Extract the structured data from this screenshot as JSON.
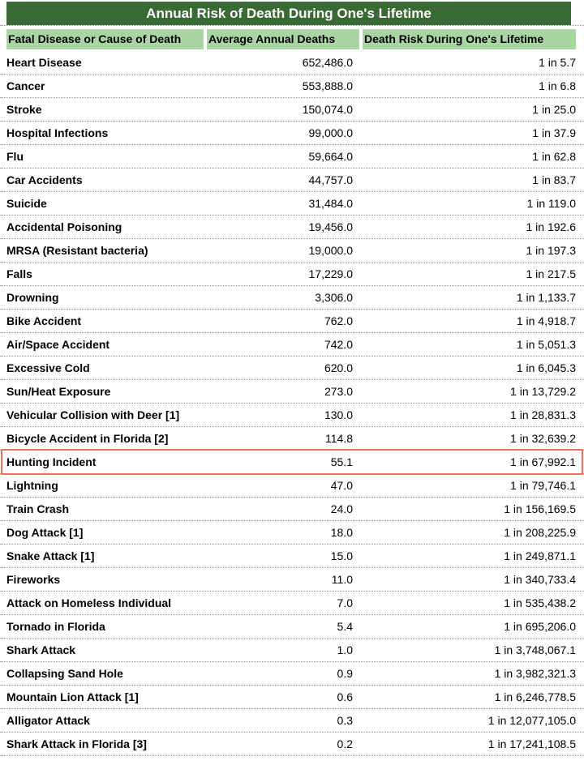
{
  "title": "Annual Risk of Death During One's Lifetime",
  "table": {
    "columns": [
      "Fatal Disease or Cause of Death",
      "Average Annual Deaths",
      "Death Risk During One's Lifetime"
    ],
    "rows": [
      {
        "cause": "Heart Disease",
        "deaths": "652,486.0",
        "risk": "1 in 5.7",
        "highlighted": false
      },
      {
        "cause": "Cancer",
        "deaths": "553,888.0",
        "risk": "1 in 6.8",
        "highlighted": false
      },
      {
        "cause": "Stroke",
        "deaths": "150,074.0",
        "risk": "1 in 25.0",
        "highlighted": false
      },
      {
        "cause": "Hospital Infections",
        "deaths": "99,000.0",
        "risk": "1 in 37.9",
        "highlighted": false
      },
      {
        "cause": "Flu",
        "deaths": "59,664.0",
        "risk": "1 in 62.8",
        "highlighted": false
      },
      {
        "cause": "Car Accidents",
        "deaths": "44,757.0",
        "risk": "1 in 83.7",
        "highlighted": false
      },
      {
        "cause": "Suicide",
        "deaths": "31,484.0",
        "risk": "1 in 119.0",
        "highlighted": false
      },
      {
        "cause": "Accidental Poisoning",
        "deaths": "19,456.0",
        "risk": "1 in 192.6",
        "highlighted": false
      },
      {
        "cause": "MRSA (Resistant bacteria)",
        "deaths": "19,000.0",
        "risk": "1 in 197.3",
        "highlighted": false
      },
      {
        "cause": "Falls",
        "deaths": "17,229.0",
        "risk": "1 in 217.5",
        "highlighted": false
      },
      {
        "cause": "Drowning",
        "deaths": "3,306.0",
        "risk": "1 in 1,133.7",
        "highlighted": false
      },
      {
        "cause": "Bike Accident",
        "deaths": "762.0",
        "risk": "1 in 4,918.7",
        "highlighted": false
      },
      {
        "cause": "Air/Space Accident",
        "deaths": "742.0",
        "risk": "1 in 5,051.3",
        "highlighted": false
      },
      {
        "cause": "Excessive Cold",
        "deaths": "620.0",
        "risk": "1 in 6,045.3",
        "highlighted": false
      },
      {
        "cause": "Sun/Heat Exposure",
        "deaths": "273.0",
        "risk": "1 in 13,729.2",
        "highlighted": false
      },
      {
        "cause": "Vehicular Collision with Deer [1]",
        "deaths": "130.0",
        "risk": "1 in 28,831.3",
        "highlighted": false
      },
      {
        "cause": "Bicycle Accident in Florida [2]",
        "deaths": "114.8",
        "risk": "1 in 32,639.2",
        "highlighted": false
      },
      {
        "cause": "Hunting Incident",
        "deaths": "55.1",
        "risk": "1 in 67,992.1",
        "highlighted": true
      },
      {
        "cause": "Lightning",
        "deaths": "47.0",
        "risk": "1 in 79,746.1",
        "highlighted": false
      },
      {
        "cause": "Train Crash",
        "deaths": "24.0",
        "risk": "1 in 156,169.5",
        "highlighted": false
      },
      {
        "cause": "Dog Attack [1]",
        "deaths": "18.0",
        "risk": "1 in 208,225.9",
        "highlighted": false
      },
      {
        "cause": "Snake Attack [1]",
        "deaths": "15.0",
        "risk": "1 in 249,871.1",
        "highlighted": false
      },
      {
        "cause": "Fireworks",
        "deaths": "11.0",
        "risk": "1 in 340,733.4",
        "highlighted": false
      },
      {
        "cause": "Attack on Homeless Individual",
        "deaths": "7.0",
        "risk": "1 in 535,438.2",
        "highlighted": false
      },
      {
        "cause": "Tornado in Florida",
        "deaths": "5.4",
        "risk": "1 in 695,206.0",
        "highlighted": false
      },
      {
        "cause": "Shark Attack",
        "deaths": "1.0",
        "risk": "1 in 3,748,067.1",
        "highlighted": false
      },
      {
        "cause": "Collapsing Sand Hole",
        "deaths": "0.9",
        "risk": "1 in 3,982,321.3",
        "highlighted": false
      },
      {
        "cause": "Mountain Lion Attack [1]",
        "deaths": "0.6",
        "risk": "1 in 6,246,778.5",
        "highlighted": false
      },
      {
        "cause": "Alligator Attack",
        "deaths": "0.3",
        "risk": "1 in 12,077,105.0",
        "highlighted": false
      },
      {
        "cause": "Shark Attack in Florida [3]",
        "deaths": "0.2",
        "risk": "1 in 17,241,108.5",
        "highlighted": false
      }
    ]
  },
  "colors": {
    "title_bg": "#396a34",
    "title_text": "#ffffff",
    "header_bg": "#a8d5a2",
    "header_text": "#000000",
    "separator": "#999999",
    "highlight_border": "#e8735c",
    "background": "#ffffff"
  },
  "chart_data": {
    "type": "table",
    "title": "Annual Risk of Death During One's Lifetime",
    "columns": [
      "Fatal Disease or Cause of Death",
      "Average Annual Deaths",
      "Death Risk During One's Lifetime"
    ],
    "categories": [
      "Heart Disease",
      "Cancer",
      "Stroke",
      "Hospital Infections",
      "Flu",
      "Car Accidents",
      "Suicide",
      "Accidental Poisoning",
      "MRSA (Resistant bacteria)",
      "Falls",
      "Drowning",
      "Bike Accident",
      "Air/Space Accident",
      "Excessive Cold",
      "Sun/Heat Exposure",
      "Vehicular Collision with Deer [1]",
      "Bicycle Accident in Florida [2]",
      "Hunting Incident",
      "Lightning",
      "Train Crash",
      "Dog Attack [1]",
      "Snake Attack [1]",
      "Fireworks",
      "Attack on Homeless Individual",
      "Tornado in Florida",
      "Shark Attack",
      "Collapsing Sand Hole",
      "Mountain Lion Attack [1]",
      "Alligator Attack",
      "Shark Attack in Florida [3]"
    ],
    "series": [
      {
        "name": "Average Annual Deaths",
        "values": [
          652486.0,
          553888.0,
          150074.0,
          99000.0,
          59664.0,
          44757.0,
          31484.0,
          19456.0,
          19000.0,
          17229.0,
          3306.0,
          762.0,
          742.0,
          620.0,
          273.0,
          130.0,
          114.8,
          55.1,
          47.0,
          24.0,
          18.0,
          15.0,
          11.0,
          7.0,
          5.4,
          1.0,
          0.9,
          0.6,
          0.3,
          0.2
        ]
      },
      {
        "name": "Death Risk During One's Lifetime (1 in N)",
        "values": [
          5.7,
          6.8,
          25.0,
          37.9,
          62.8,
          83.7,
          119.0,
          192.6,
          197.3,
          217.5,
          1133.7,
          4918.7,
          5051.3,
          6045.3,
          13729.2,
          28831.3,
          32639.2,
          67992.1,
          79746.1,
          156169.5,
          208225.9,
          249871.1,
          340733.4,
          535438.2,
          695206.0,
          3748067.1,
          3982321.3,
          6246778.5,
          12077105.0,
          17241108.5
        ]
      }
    ],
    "highlighted_category": "Hunting Incident"
  }
}
